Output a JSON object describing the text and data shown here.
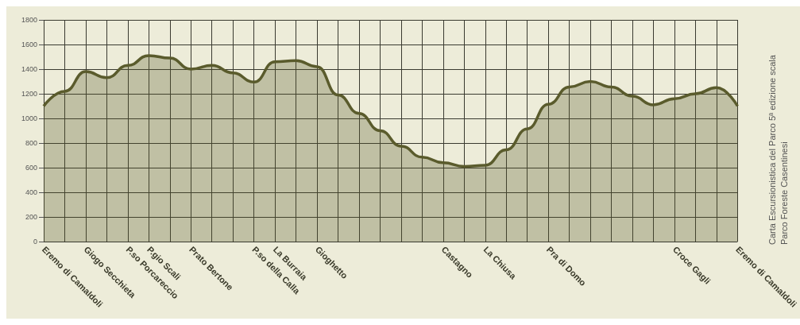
{
  "chart_data": {
    "type": "area",
    "categories": [
      "Eremo di Camaldoli",
      null,
      "Giogo Secchieta",
      null,
      "P.so Porcareccio",
      "P.gio Scali",
      null,
      "Prato Bertone",
      null,
      null,
      "P.so della Calla",
      "La Burraia",
      null,
      "Gioghetto",
      null,
      null,
      null,
      null,
      null,
      "Castagno",
      null,
      "La Chiusa",
      null,
      null,
      "Pra di Domo",
      null,
      null,
      null,
      null,
      null,
      "Croce Gagli",
      null,
      null,
      "Eremo di Camaldoli"
    ],
    "series": [
      {
        "color": "#5a5b2c",
        "values": [
          1100,
          1220,
          1380,
          1330,
          1430,
          1510,
          1490,
          1400,
          1430,
          1370,
          1295,
          1460,
          1470,
          1420,
          1190,
          1040,
          900,
          775,
          685,
          640,
          610,
          620,
          745,
          915,
          1115,
          1255,
          1300,
          1255,
          1180,
          1110,
          1160,
          1200,
          1250,
          1100
        ]
      }
    ],
    "ylim": [
      0,
      1800
    ],
    "yticks": [
      0,
      200,
      400,
      600,
      800,
      1000,
      1200,
      1400,
      1600,
      1800
    ],
    "grid": true,
    "marker": "none",
    "annotations": [
      "Carta Escursionistica del Parco 5ª edizione scala",
      "Parco Foreste Casentinesi"
    ]
  }
}
